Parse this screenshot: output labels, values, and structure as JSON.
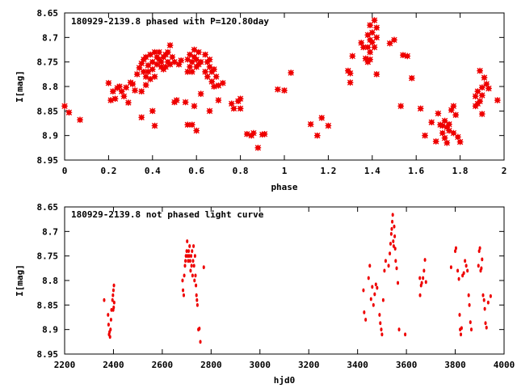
{
  "chart_data": [
    {
      "type": "scatter",
      "title": "180929-2139.8 phased with P=120.80day",
      "xlabel": "phase",
      "ylabel": "I[mag]",
      "xlim": [
        0,
        2
      ],
      "ylim": [
        8.65,
        8.95
      ],
      "y_inverted": true,
      "grid": false,
      "xticks": [
        0,
        0.2,
        0.4,
        0.6,
        0.8,
        1,
        1.2,
        1.4,
        1.6,
        1.8,
        2
      ],
      "yticks": [
        8.65,
        8.7,
        8.75,
        8.8,
        8.85,
        8.9,
        8.95
      ],
      "xtick_labels": [
        "0",
        "0.2",
        "0.4",
        "0.6",
        "0.8",
        "1",
        "1.2",
        "1.4",
        "1.6",
        "1.8",
        "2"
      ],
      "ytick_labels": [
        "8.65",
        "8.7",
        "8.75",
        "8.8",
        "8.85",
        "8.9",
        "8.95"
      ],
      "marker_color": "#ee0000",
      "points": [
        [
          0.0,
          8.84
        ],
        [
          0.02,
          8.853
        ],
        [
          0.07,
          8.868
        ],
        [
          0.2,
          8.793
        ],
        [
          0.21,
          8.828
        ],
        [
          0.22,
          8.81
        ],
        [
          0.23,
          8.825
        ],
        [
          0.24,
          8.803
        ],
        [
          0.25,
          8.8
        ],
        [
          0.26,
          8.81
        ],
        [
          0.27,
          8.82
        ],
        [
          0.28,
          8.802
        ],
        [
          0.29,
          8.833
        ],
        [
          0.3,
          8.792
        ],
        [
          0.31,
          8.795
        ],
        [
          0.32,
          8.808
        ],
        [
          0.33,
          8.775
        ],
        [
          0.34,
          8.762
        ],
        [
          0.35,
          8.753
        ],
        [
          0.35,
          8.81
        ],
        [
          0.36,
          8.77
        ],
        [
          0.36,
          8.745
        ],
        [
          0.37,
          8.74
        ],
        [
          0.37,
          8.78
        ],
        [
          0.38,
          8.757
        ],
        [
          0.38,
          8.77
        ],
        [
          0.39,
          8.785
        ],
        [
          0.39,
          8.735
        ],
        [
          0.4,
          8.75
        ],
        [
          0.4,
          8.765
        ],
        [
          0.41,
          8.73
        ],
        [
          0.41,
          8.78
        ],
        [
          0.42,
          8.74
        ],
        [
          0.42,
          8.755
        ],
        [
          0.43,
          8.745
        ],
        [
          0.43,
          8.73
        ],
        [
          0.44,
          8.76
        ],
        [
          0.44,
          8.75
        ],
        [
          0.45,
          8.74
        ],
        [
          0.45,
          8.765
        ],
        [
          0.46,
          8.735
        ],
        [
          0.46,
          8.76
        ],
        [
          0.47,
          8.73
        ],
        [
          0.47,
          8.75
        ],
        [
          0.48,
          8.716
        ],
        [
          0.48,
          8.755
        ],
        [
          0.49,
          8.74
        ],
        [
          0.5,
          8.75
        ],
        [
          0.5,
          8.832
        ],
        [
          0.51,
          8.828
        ],
        [
          0.52,
          8.755
        ],
        [
          0.53,
          8.747
        ],
        [
          0.35,
          8.863
        ],
        [
          0.4,
          8.85
        ],
        [
          0.41,
          8.88
        ],
        [
          0.37,
          8.797
        ],
        [
          0.55,
          8.832
        ],
        [
          0.56,
          8.77
        ],
        [
          0.56,
          8.745
        ],
        [
          0.57,
          8.76
        ],
        [
          0.57,
          8.735
        ],
        [
          0.58,
          8.75
        ],
        [
          0.58,
          8.77
        ],
        [
          0.59,
          8.74
        ],
        [
          0.59,
          8.725
        ],
        [
          0.6,
          8.745
        ],
        [
          0.6,
          8.76
        ],
        [
          0.61,
          8.755
        ],
        [
          0.61,
          8.73
        ],
        [
          0.62,
          8.75
        ],
        [
          0.62,
          8.815
        ],
        [
          0.56,
          8.878
        ],
        [
          0.58,
          8.878
        ],
        [
          0.6,
          8.89
        ],
        [
          0.59,
          8.84
        ],
        [
          0.64,
          8.77
        ],
        [
          0.65,
          8.75
        ],
        [
          0.65,
          8.78
        ],
        [
          0.66,
          8.76
        ],
        [
          0.66,
          8.745
        ],
        [
          0.67,
          8.77
        ],
        [
          0.67,
          8.79
        ],
        [
          0.68,
          8.765
        ],
        [
          0.68,
          8.8
        ],
        [
          0.69,
          8.78
        ],
        [
          0.7,
          8.798
        ],
        [
          0.66,
          8.85
        ],
        [
          0.7,
          8.828
        ],
        [
          0.64,
          8.735
        ],
        [
          0.72,
          8.793
        ],
        [
          0.76,
          8.835
        ],
        [
          0.77,
          8.845
        ],
        [
          0.79,
          8.83
        ],
        [
          0.8,
          8.845
        ],
        [
          0.8,
          8.825
        ],
        [
          0.83,
          8.897
        ],
        [
          0.85,
          8.9
        ],
        [
          0.86,
          8.895
        ],
        [
          0.88,
          8.925
        ],
        [
          0.9,
          8.898
        ],
        [
          0.91,
          8.897
        ],
        [
          0.97,
          8.806
        ],
        [
          1.0,
          8.808
        ],
        [
          1.03,
          8.772
        ],
        [
          1.12,
          8.877
        ],
        [
          1.15,
          8.9
        ],
        [
          1.17,
          8.864
        ],
        [
          1.2,
          8.88
        ],
        [
          1.29,
          8.768
        ],
        [
          1.3,
          8.773
        ],
        [
          1.3,
          8.792
        ],
        [
          1.31,
          8.738
        ],
        [
          1.35,
          8.711
        ],
        [
          1.36,
          8.72
        ],
        [
          1.37,
          8.743
        ],
        [
          1.38,
          8.72
        ],
        [
          1.38,
          8.695
        ],
        [
          1.39,
          8.705
        ],
        [
          1.39,
          8.675
        ],
        [
          1.39,
          8.73
        ],
        [
          1.4,
          8.69
        ],
        [
          1.4,
          8.71
        ],
        [
          1.41,
          8.665
        ],
        [
          1.41,
          8.72
        ],
        [
          1.42,
          8.68
        ],
        [
          1.42,
          8.7
        ],
        [
          1.38,
          8.75
        ],
        [
          1.39,
          8.745
        ],
        [
          1.42,
          8.775
        ],
        [
          1.48,
          8.712
        ],
        [
          1.5,
          8.705
        ],
        [
          1.53,
          8.84
        ],
        [
          1.54,
          8.736
        ],
        [
          1.56,
          8.738
        ],
        [
          1.58,
          8.783
        ],
        [
          1.62,
          8.845
        ],
        [
          1.64,
          8.9
        ],
        [
          1.67,
          8.873
        ],
        [
          1.69,
          8.912
        ],
        [
          1.7,
          8.855
        ],
        [
          1.71,
          8.878
        ],
        [
          1.72,
          8.88
        ],
        [
          1.72,
          8.895
        ],
        [
          1.73,
          8.905
        ],
        [
          1.73,
          8.87
        ],
        [
          1.74,
          8.883
        ],
        [
          1.74,
          8.915
        ],
        [
          1.75,
          8.877
        ],
        [
          1.75,
          8.89
        ],
        [
          1.76,
          8.848
        ],
        [
          1.77,
          8.895
        ],
        [
          1.77,
          8.84
        ],
        [
          1.78,
          8.858
        ],
        [
          1.79,
          8.903
        ],
        [
          1.8,
          8.913
        ],
        [
          1.87,
          8.84
        ],
        [
          1.87,
          8.82
        ],
        [
          1.88,
          8.835
        ],
        [
          1.88,
          8.81
        ],
        [
          1.89,
          8.83
        ],
        [
          1.9,
          8.818
        ],
        [
          1.9,
          8.802
        ],
        [
          1.89,
          8.768
        ],
        [
          1.91,
          8.782
        ],
        [
          1.92,
          8.795
        ],
        [
          1.9,
          8.856
        ],
        [
          1.93,
          8.804
        ],
        [
          1.97,
          8.828
        ]
      ]
    },
    {
      "type": "scatter",
      "title": "180929-2139.8 not phased light curve",
      "xlabel": "hjd0",
      "ylabel": "I[mag]",
      "xlim": [
        2200,
        4000
      ],
      "ylim": [
        8.65,
        8.95
      ],
      "y_inverted": true,
      "grid": false,
      "xticks": [
        2200,
        2400,
        2600,
        2800,
        3000,
        3200,
        3400,
        3600,
        3800,
        4000
      ],
      "yticks": [
        8.65,
        8.7,
        8.75,
        8.8,
        8.85,
        8.9,
        8.95
      ],
      "xtick_labels": [
        "2200",
        "2400",
        "2600",
        "2800",
        "3000",
        "3200",
        "3400",
        "3600",
        "3800",
        "4000"
      ],
      "ytick_labels": [
        "8.65",
        "8.7",
        "8.75",
        "8.8",
        "8.85",
        "8.9",
        "8.95"
      ],
      "marker_color": "#ee0000",
      "points": [
        [
          2362,
          8.84
        ],
        [
          2378,
          8.87
        ],
        [
          2380,
          8.89
        ],
        [
          2382,
          8.91
        ],
        [
          2384,
          8.905
        ],
        [
          2386,
          8.915
        ],
        [
          2388,
          8.9
        ],
        [
          2390,
          8.88
        ],
        [
          2392,
          8.86
        ],
        [
          2396,
          8.84
        ],
        [
          2398,
          8.83
        ],
        [
          2400,
          8.82
        ],
        [
          2402,
          8.81
        ],
        [
          2401,
          8.855
        ],
        [
          2403,
          8.845
        ],
        [
          2399,
          8.86
        ],
        [
          2683,
          8.8
        ],
        [
          2685,
          8.82
        ],
        [
          2688,
          8.83
        ],
        [
          2690,
          8.79
        ],
        [
          2693,
          8.77
        ],
        [
          2695,
          8.76
        ],
        [
          2697,
          8.75
        ],
        [
          2700,
          8.74
        ],
        [
          2702,
          8.72
        ],
        [
          2704,
          8.75
        ],
        [
          2706,
          8.76
        ],
        [
          2708,
          8.74
        ],
        [
          2710,
          8.75
        ],
        [
          2712,
          8.73
        ],
        [
          2714,
          8.76
        ],
        [
          2716,
          8.78
        ],
        [
          2718,
          8.75
        ],
        [
          2720,
          8.77
        ],
        [
          2722,
          8.74
        ],
        [
          2724,
          8.79
        ],
        [
          2726,
          8.76
        ],
        [
          2728,
          8.73
        ],
        [
          2730,
          8.77
        ],
        [
          2732,
          8.8
        ],
        [
          2734,
          8.75
        ],
        [
          2736,
          8.79
        ],
        [
          2738,
          8.81
        ],
        [
          2740,
          8.83
        ],
        [
          2742,
          8.84
        ],
        [
          2744,
          8.85
        ],
        [
          2748,
          8.9
        ],
        [
          2752,
          8.898
        ],
        [
          2756,
          8.925
        ],
        [
          2770,
          8.773
        ],
        [
          3424,
          8.82
        ],
        [
          3427,
          8.865
        ],
        [
          3433,
          8.88
        ],
        [
          3445,
          8.795
        ],
        [
          3450,
          8.77
        ],
        [
          3455,
          8.838
        ],
        [
          3460,
          8.813
        ],
        [
          3465,
          8.85
        ],
        [
          3470,
          8.828
        ],
        [
          3475,
          8.808
        ],
        [
          3480,
          8.815
        ],
        [
          3490,
          8.87
        ],
        [
          3493,
          8.887
        ],
        [
          3497,
          8.9
        ],
        [
          3500,
          8.91
        ],
        [
          3505,
          8.84
        ],
        [
          3510,
          8.78
        ],
        [
          3515,
          8.76
        ],
        [
          3527,
          8.77
        ],
        [
          3532,
          8.745
        ],
        [
          3535,
          8.725
        ],
        [
          3538,
          8.705
        ],
        [
          3540,
          8.695
        ],
        [
          3542,
          8.68
        ],
        [
          3544,
          8.666
        ],
        [
          3546,
          8.72
        ],
        [
          3548,
          8.73
        ],
        [
          3550,
          8.69
        ],
        [
          3552,
          8.71
        ],
        [
          3554,
          8.735
        ],
        [
          3556,
          8.76
        ],
        [
          3560,
          8.775
        ],
        [
          3565,
          8.805
        ],
        [
          3570,
          8.9
        ],
        [
          3595,
          8.91
        ],
        [
          3655,
          8.795
        ],
        [
          3660,
          8.81
        ],
        [
          3663,
          8.805
        ],
        [
          3668,
          8.795
        ],
        [
          3672,
          8.78
        ],
        [
          3676,
          8.758
        ],
        [
          3680,
          8.803
        ],
        [
          3656,
          8.83
        ],
        [
          3783,
          8.773
        ],
        [
          3800,
          8.74
        ],
        [
          3803,
          8.734
        ],
        [
          3810,
          8.78
        ],
        [
          3815,
          8.797
        ],
        [
          3818,
          8.87
        ],
        [
          3820,
          8.9
        ],
        [
          3823,
          8.91
        ],
        [
          3826,
          8.897
        ],
        [
          3830,
          8.79
        ],
        [
          3835,
          8.785
        ],
        [
          3840,
          8.76
        ],
        [
          3845,
          8.77
        ],
        [
          3850,
          8.78
        ],
        [
          3855,
          8.83
        ],
        [
          3858,
          8.85
        ],
        [
          3862,
          8.885
        ],
        [
          3866,
          8.9
        ],
        [
          3895,
          8.77
        ],
        [
          3898,
          8.74
        ],
        [
          3901,
          8.734
        ],
        [
          3904,
          8.78
        ],
        [
          3907,
          8.775
        ],
        [
          3910,
          8.757
        ],
        [
          3914,
          8.83
        ],
        [
          3918,
          8.84
        ],
        [
          3921,
          8.858
        ],
        [
          3924,
          8.887
        ],
        [
          3928,
          8.896
        ],
        [
          3935,
          8.845
        ],
        [
          3945,
          8.832
        ]
      ]
    }
  ]
}
